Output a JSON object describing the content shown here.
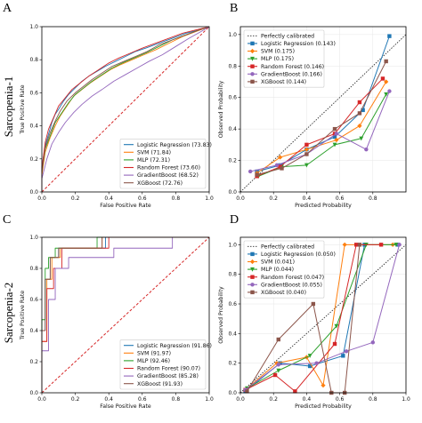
{
  "row_labels": [
    "Sarcopenia-1",
    "Sarcopenia-2"
  ],
  "colors": {
    "Logistic Regression": "#1f77b4",
    "SVM": "#ff7f0e",
    "MLP": "#2ca02c",
    "Random Forest": "#d62728",
    "GradientBoost": "#9467bd",
    "XGBoost": "#8c564b",
    "diagonal": "#d62728",
    "calibrated": "#555555"
  },
  "chart_data": [
    {
      "panel": "A",
      "type": "line",
      "xlabel": "False Positive Rate",
      "ylabel": "True Positive Rate",
      "xlim": [
        0,
        1
      ],
      "ylim": [
        0,
        1
      ],
      "xticks": [
        "0.0",
        "0.2",
        "0.4",
        "0.6",
        "0.8",
        "1.0"
      ],
      "yticks": [
        "0.0",
        "0.2",
        "0.4",
        "0.6",
        "0.8",
        "1.0"
      ],
      "diagonal": true,
      "legend_position": "lower-right",
      "series": [
        {
          "name": "Logistic Regression (73.83)",
          "model": "Logistic Regression",
          "x": [
            0,
            0,
            0.02,
            0.04,
            0.06,
            0.08,
            0.1,
            0.13,
            0.16,
            0.2,
            0.24,
            0.28,
            0.33,
            0.38,
            0.44,
            0.5,
            0.56,
            0.62,
            0.7,
            0.78,
            0.86,
            0.94,
            1
          ],
          "y": [
            0,
            0.15,
            0.28,
            0.35,
            0.42,
            0.47,
            0.5,
            0.55,
            0.59,
            0.63,
            0.67,
            0.7,
            0.73,
            0.76,
            0.79,
            0.82,
            0.85,
            0.87,
            0.9,
            0.93,
            0.96,
            0.98,
            1
          ]
        },
        {
          "name": "SVM (71.84)",
          "model": "SVM",
          "x": [
            0,
            0,
            0.02,
            0.05,
            0.08,
            0.11,
            0.15,
            0.19,
            0.24,
            0.29,
            0.35,
            0.41,
            0.47,
            0.54,
            0.61,
            0.68,
            0.76,
            0.84,
            0.92,
            1
          ],
          "y": [
            0,
            0.1,
            0.24,
            0.33,
            0.4,
            0.46,
            0.52,
            0.58,
            0.62,
            0.66,
            0.7,
            0.74,
            0.77,
            0.8,
            0.83,
            0.86,
            0.9,
            0.94,
            0.97,
            1
          ]
        },
        {
          "name": "MLP (72.31)",
          "model": "MLP",
          "x": [
            0,
            0,
            0.02,
            0.05,
            0.08,
            0.12,
            0.16,
            0.2,
            0.25,
            0.3,
            0.36,
            0.42,
            0.48,
            0.55,
            0.62,
            0.7,
            0.78,
            0.86,
            0.94,
            1
          ],
          "y": [
            0,
            0.12,
            0.26,
            0.34,
            0.42,
            0.48,
            0.54,
            0.59,
            0.63,
            0.67,
            0.71,
            0.75,
            0.78,
            0.81,
            0.84,
            0.88,
            0.92,
            0.95,
            0.98,
            1
          ]
        },
        {
          "name": "Random Forest (73.60)",
          "model": "Random Forest",
          "x": [
            0,
            0,
            0.02,
            0.04,
            0.07,
            0.1,
            0.14,
            0.18,
            0.23,
            0.28,
            0.34,
            0.4,
            0.46,
            0.53,
            0.6,
            0.68,
            0.76,
            0.84,
            0.92,
            1
          ],
          "y": [
            0,
            0.14,
            0.3,
            0.38,
            0.45,
            0.52,
            0.57,
            0.62,
            0.66,
            0.7,
            0.74,
            0.78,
            0.81,
            0.84,
            0.87,
            0.9,
            0.93,
            0.96,
            0.98,
            1
          ]
        },
        {
          "name": "GradientBoost (68.52)",
          "model": "GradientBoost",
          "x": [
            0,
            0,
            0.03,
            0.06,
            0.1,
            0.14,
            0.19,
            0.24,
            0.3,
            0.36,
            0.43,
            0.5,
            0.57,
            0.64,
            0.72,
            0.8,
            0.88,
            0.95,
            1
          ],
          "y": [
            0,
            0.08,
            0.2,
            0.29,
            0.36,
            0.42,
            0.48,
            0.53,
            0.58,
            0.62,
            0.67,
            0.71,
            0.75,
            0.79,
            0.83,
            0.88,
            0.93,
            0.97,
            1
          ]
        },
        {
          "name": "XGBoost (72.76)",
          "model": "XGBoost",
          "x": [
            0,
            0,
            0.02,
            0.05,
            0.08,
            0.11,
            0.15,
            0.2,
            0.25,
            0.3,
            0.36,
            0.42,
            0.49,
            0.56,
            0.63,
            0.7,
            0.78,
            0.86,
            0.94,
            1
          ],
          "y": [
            0,
            0.12,
            0.27,
            0.36,
            0.43,
            0.49,
            0.55,
            0.6,
            0.64,
            0.68,
            0.72,
            0.76,
            0.79,
            0.82,
            0.85,
            0.89,
            0.92,
            0.95,
            0.98,
            1
          ]
        }
      ]
    },
    {
      "panel": "B",
      "type": "line",
      "xlabel": "Predicted Probability",
      "ylabel": "Observed Probability",
      "xlim": [
        0,
        1
      ],
      "ylim": [
        0,
        1.05
      ],
      "xticks": [
        "0.0",
        "0.2",
        "0.4",
        "0.6",
        "0.8"
      ],
      "yticks": [
        "0.0",
        "0.2",
        "0.4",
        "0.6",
        "0.8",
        "1.0"
      ],
      "calibrated_label": "Perfectly calibrated",
      "legend_position": "upper-left",
      "markers": true,
      "series": [
        {
          "name": "Logistic Regression (0.143)",
          "model": "Logistic Regression",
          "x": [
            0.1,
            0.24,
            0.4,
            0.57,
            0.74,
            0.9
          ],
          "y": [
            0.13,
            0.17,
            0.27,
            0.35,
            0.52,
            0.99
          ]
        },
        {
          "name": "SVM (0.175)",
          "model": "SVM",
          "x": [
            0.1,
            0.24,
            0.4,
            0.58,
            0.72,
            0.88
          ],
          "y": [
            0.12,
            0.22,
            0.27,
            0.33,
            0.42,
            0.7
          ]
        },
        {
          "name": "MLP (0.175)",
          "model": "MLP",
          "x": [
            0.11,
            0.25,
            0.4,
            0.57,
            0.73,
            0.88
          ],
          "y": [
            0.1,
            0.16,
            0.17,
            0.3,
            0.34,
            0.62
          ]
        },
        {
          "name": "Random Forest (0.146)",
          "model": "Random Forest",
          "x": [
            0.1,
            0.24,
            0.4,
            0.57,
            0.72,
            0.86
          ],
          "y": [
            0.1,
            0.16,
            0.3,
            0.37,
            0.57,
            0.72
          ]
        },
        {
          "name": "GradientBoost (0.166)",
          "model": "GradientBoost",
          "x": [
            0.06,
            0.22,
            0.4,
            0.58,
            0.76,
            0.9
          ],
          "y": [
            0.13,
            0.17,
            0.24,
            0.37,
            0.27,
            0.64
          ]
        },
        {
          "name": "XGBoost (0.144)",
          "model": "XGBoost",
          "x": [
            0.1,
            0.25,
            0.4,
            0.57,
            0.72,
            0.88
          ],
          "y": [
            0.11,
            0.15,
            0.24,
            0.4,
            0.5,
            0.83
          ]
        }
      ]
    },
    {
      "panel": "C",
      "type": "line",
      "xlabel": "False Positive Rate",
      "ylabel": "True Positive Rate",
      "xlim": [
        0,
        1
      ],
      "ylim": [
        0,
        1
      ],
      "xticks": [
        "0.0",
        "0.2",
        "0.4",
        "0.6",
        "0.8",
        "1.0"
      ],
      "yticks": [
        "0.0",
        "0.2",
        "0.4",
        "0.6",
        "0.8",
        "1.0"
      ],
      "diagonal": true,
      "legend_position": "lower-right",
      "series": [
        {
          "name": "Logistic Regression (91.86)",
          "model": "Logistic Regression",
          "x": [
            0,
            0,
            0.02,
            0.02,
            0.05,
            0.05,
            0.1,
            0.1,
            0.38,
            0.38,
            0.8,
            0.8,
            1
          ],
          "y": [
            0,
            0.4,
            0.4,
            0.73,
            0.73,
            0.87,
            0.87,
            0.93,
            0.93,
            1,
            1,
            1,
            1
          ]
        },
        {
          "name": "SVM (91.97)",
          "model": "SVM",
          "x": [
            0,
            0,
            0.03,
            0.03,
            0.06,
            0.06,
            0.11,
            0.11,
            0.36,
            0.36,
            1
          ],
          "y": [
            0,
            0.33,
            0.33,
            0.73,
            0.73,
            0.87,
            0.87,
            0.93,
            0.93,
            1,
            1
          ]
        },
        {
          "name": "MLP (92.46)",
          "model": "MLP",
          "x": [
            0,
            0,
            0.02,
            0.02,
            0.04,
            0.04,
            0.08,
            0.08,
            0.33,
            0.33,
            1
          ],
          "y": [
            0,
            0.47,
            0.47,
            0.8,
            0.8,
            0.87,
            0.87,
            0.93,
            0.93,
            1,
            1
          ]
        },
        {
          "name": "Random Forest (90.07)",
          "model": "Random Forest",
          "x": [
            0,
            0,
            0.03,
            0.03,
            0.07,
            0.07,
            0.12,
            0.12,
            0.4,
            0.4,
            1
          ],
          "y": [
            0,
            0.33,
            0.33,
            0.67,
            0.67,
            0.8,
            0.8,
            0.93,
            0.93,
            1,
            1
          ]
        },
        {
          "name": "GradientBoost (85.28)",
          "model": "GradientBoost",
          "x": [
            0,
            0,
            0.04,
            0.04,
            0.08,
            0.08,
            0.16,
            0.16,
            0.43,
            0.43,
            0.78,
            0.78,
            1
          ],
          "y": [
            0,
            0.27,
            0.27,
            0.6,
            0.6,
            0.8,
            0.8,
            0.87,
            0.87,
            0.93,
            0.93,
            1,
            1
          ]
        },
        {
          "name": "XGBoost (91.93)",
          "model": "XGBoost",
          "x": [
            0,
            0,
            0.02,
            0.02,
            0.05,
            0.05,
            0.1,
            0.1,
            0.36,
            0.36,
            1
          ],
          "y": [
            0,
            0.4,
            0.4,
            0.73,
            0.73,
            0.87,
            0.87,
            0.93,
            0.93,
            1,
            1
          ]
        }
      ]
    },
    {
      "panel": "D",
      "type": "line",
      "xlabel": "Predicted Probability",
      "ylabel": "Observed Probability",
      "xlim": [
        0,
        1
      ],
      "ylim": [
        0,
        1.05
      ],
      "xticks": [
        "0.0",
        "0.2",
        "0.4",
        "0.6",
        "0.8",
        "1.0"
      ],
      "yticks": [
        "0.0",
        "0.2",
        "0.4",
        "0.6",
        "0.8",
        "1.0"
      ],
      "calibrated_label": "Perfectly calibrated",
      "legend_position": "upper-left",
      "markers": true,
      "series": [
        {
          "name": "Logistic Regression (0.050)",
          "model": "Logistic Regression",
          "x": [
            0.03,
            0.24,
            0.42,
            0.62,
            0.75,
            0.95
          ],
          "y": [
            0.01,
            0.2,
            0.18,
            0.25,
            1.0,
            1.0
          ]
        },
        {
          "name": "SVM (0.041)",
          "model": "SVM",
          "x": [
            0.03,
            0.22,
            0.4,
            0.5,
            0.63,
            0.92
          ],
          "y": [
            0.02,
            0.2,
            0.24,
            0.05,
            1.0,
            1.0
          ]
        },
        {
          "name": "MLP (0.044)",
          "model": "MLP",
          "x": [
            0.04,
            0.23,
            0.42,
            0.58,
            0.76,
            0.94
          ],
          "y": [
            0.03,
            0.15,
            0.25,
            0.45,
            1.0,
            1.0
          ]
        },
        {
          "name": "Random Forest (0.047)",
          "model": "Random Forest",
          "x": [
            0.03,
            0.21,
            0.33,
            0.57,
            0.7,
            0.85
          ],
          "y": [
            0.02,
            0.12,
            0.01,
            0.33,
            1.0,
            1.0
          ]
        },
        {
          "name": "GradientBoost (0.055)",
          "model": "GradientBoost",
          "x": [
            0.03,
            0.23,
            0.46,
            0.64,
            0.8,
            0.96
          ],
          "y": [
            0.02,
            0.19,
            0.2,
            0.28,
            0.34,
            1.0
          ]
        },
        {
          "name": "XGBoost (0.040)",
          "model": "XGBoost",
          "x": [
            0.04,
            0.23,
            0.44,
            0.55,
            0.63,
            0.72
          ],
          "y": [
            0.01,
            0.36,
            0.6,
            0.0,
            0.0,
            1.0
          ]
        }
      ]
    }
  ]
}
